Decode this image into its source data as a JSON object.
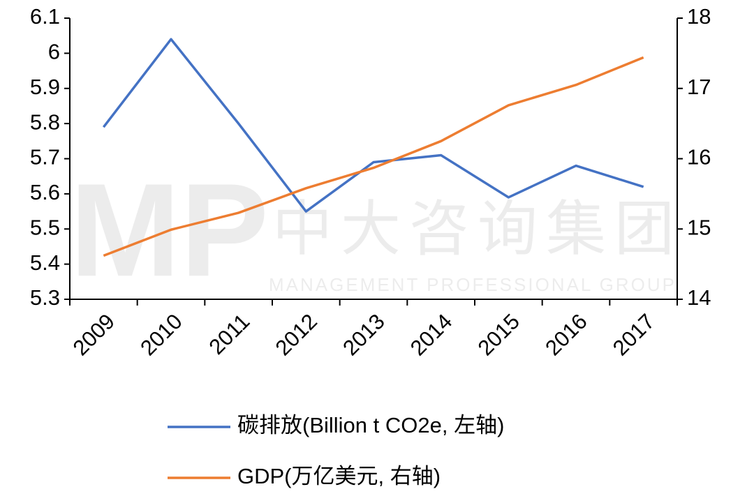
{
  "chart_data": {
    "type": "line",
    "categories": [
      "2009",
      "2010",
      "2011",
      "2012",
      "2013",
      "2014",
      "2015",
      "2016",
      "2017"
    ],
    "series": [
      {
        "name": "碳排放(Billion t CO2e, 左轴)",
        "color": "#4472c4",
        "axis": "y",
        "values": [
          5.79,
          6.04,
          5.8,
          5.55,
          5.69,
          5.71,
          5.59,
          5.68,
          5.62
        ]
      },
      {
        "name": "GDP(万亿美元, 右轴)",
        "color": "#ed7d31",
        "axis": "y2",
        "values": [
          14.62,
          14.99,
          15.23,
          15.58,
          15.87,
          16.25,
          16.76,
          17.05,
          17.44
        ]
      }
    ],
    "ylim": [
      5.3,
      6.1
    ],
    "yticks": [
      5.3,
      5.4,
      5.5,
      5.6,
      5.7,
      5.8,
      5.9,
      6,
      6.1
    ],
    "y2lim": [
      14,
      18
    ],
    "y2ticks": [
      14,
      15,
      16,
      17,
      18
    ],
    "grid": false,
    "legend": "bottom",
    "watermark": {
      "logo": "MP",
      "text": "中大咨询集团",
      "subtext": "MANAGEMENT PROFESSIONAL GROUP"
    }
  }
}
